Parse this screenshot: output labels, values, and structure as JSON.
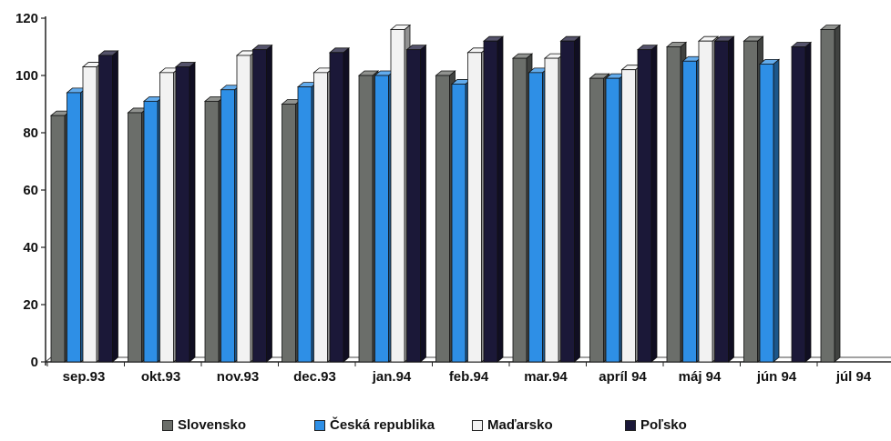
{
  "chart_data": {
    "type": "bar",
    "categories": [
      "sep.93",
      "okt.93",
      "nov.93",
      "dec.93",
      "jan.94",
      "feb.94",
      "mar.94",
      "apríl 94",
      "máj 94",
      "jún 94",
      "júl 94"
    ],
    "series": [
      {
        "name": "Slovensko",
        "color": "#6b6e6a",
        "values": [
          86,
          87,
          91,
          90,
          100,
          100,
          106,
          99,
          110,
          112,
          116
        ]
      },
      {
        "name": "Česká republika",
        "color": "#2e8fe6",
        "values": [
          94,
          91,
          95,
          96,
          100,
          97,
          101,
          99,
          105,
          104,
          null
        ]
      },
      {
        "name": "Maďarsko",
        "color": "#f2f2f2",
        "values": [
          103,
          101,
          107,
          101,
          116,
          108,
          106,
          102,
          112,
          null,
          null
        ]
      },
      {
        "name": "Poľsko",
        "color": "#1b1838",
        "values": [
          107,
          103,
          109,
          108,
          109,
          112,
          112,
          109,
          112,
          110,
          null
        ]
      }
    ],
    "y_ticks": [
      0,
      20,
      40,
      60,
      80,
      100,
      120
    ],
    "ylim": [
      0,
      120
    ],
    "title": "",
    "xlabel": "",
    "ylabel": "",
    "grid": false,
    "legend_position": "bottom"
  }
}
